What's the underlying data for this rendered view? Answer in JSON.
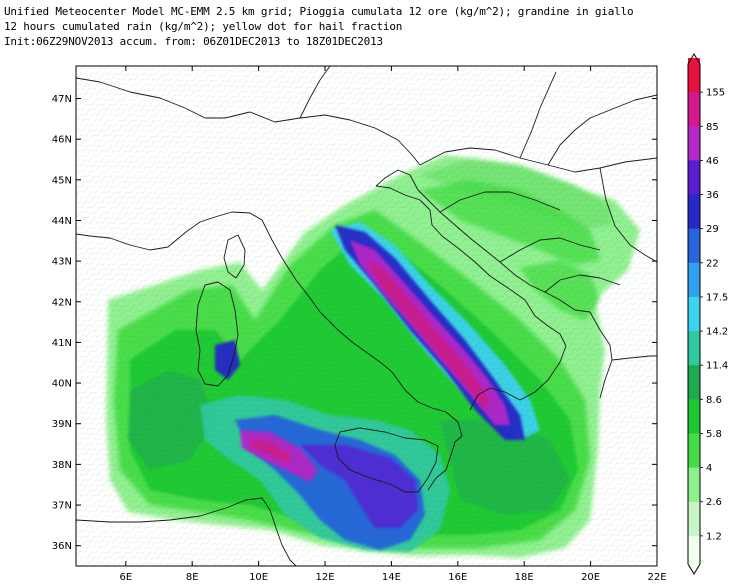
{
  "header": {
    "line1": "Unified Meteocenter Model MC-EMM 2.5 km grid; Pioggia cumulata 12 ore (kg/m^2); grandine in giallo",
    "line2": "12 hours cumulated rain (kg/m^2); yellow dot for hail fraction",
    "line3": "Init:06Z29NOV2013 accum. from: 06Z01DEC2013 to 18Z01DEC2013"
  },
  "map": {
    "lon_range": [
      4.5,
      22
    ],
    "lat_range": [
      35.5,
      47.8
    ],
    "x_ticks": [
      "6E",
      "8E",
      "10E",
      "12E",
      "14E",
      "16E",
      "18E",
      "20E",
      "22E"
    ],
    "x_tick_values": [
      6,
      8,
      10,
      12,
      14,
      16,
      18,
      20,
      22
    ],
    "y_ticks": [
      "36N",
      "37N",
      "38N",
      "39N",
      "40N",
      "41N",
      "42N",
      "43N",
      "44N",
      "45N",
      "46N",
      "47N"
    ],
    "y_tick_values": [
      36,
      37,
      38,
      39,
      40,
      41,
      42,
      43,
      44,
      45,
      46,
      47
    ]
  },
  "colorbar": {
    "labels": [
      "155",
      "85",
      "46",
      "36",
      "29",
      "22",
      "17.5",
      "14.2",
      "11.4",
      "8.6",
      "5.8",
      "4",
      "2.6",
      "1.2"
    ],
    "colors": [
      "#e8103c",
      "#d21a8c",
      "#b428c8",
      "#5a1ed2",
      "#2828c8",
      "#2864dc",
      "#32a0f0",
      "#3cd2f0",
      "#32c8a0",
      "#1eaa50",
      "#1ec832",
      "#46dc46",
      "#8cf08c",
      "#c8f5c8",
      "#f0fff0"
    ]
  },
  "colors": {
    "coast": "#1a1a1a",
    "frame": "#000000"
  }
}
